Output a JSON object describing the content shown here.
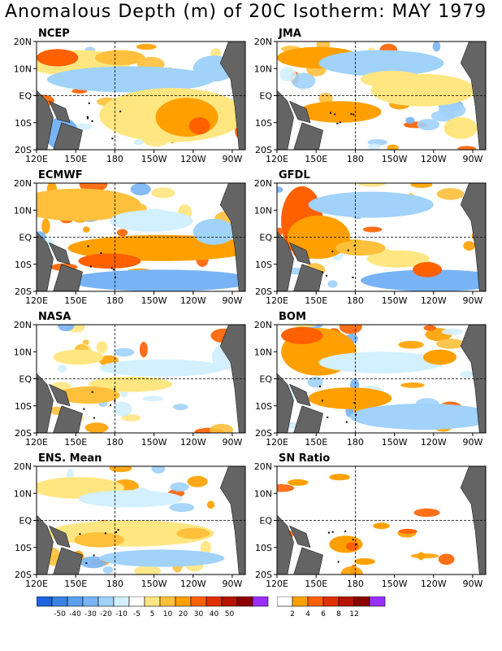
{
  "title": "Anomalous Depth (m) of 20C Isotherm: MAY 1979",
  "lat_labels": [
    "20N",
    "10N",
    "EQ",
    "10S",
    "20S"
  ],
  "lon_labels": [
    "120E",
    "150E",
    "180",
    "150W",
    "120W",
    "90W"
  ],
  "panels": [
    {
      "id": "ncep",
      "name": "NCEP"
    },
    {
      "id": "jma",
      "name": "JMA"
    },
    {
      "id": "ecmwf",
      "name": "ECMWF"
    },
    {
      "id": "gfdl",
      "name": "GFDL"
    },
    {
      "id": "nasa",
      "name": "NASA"
    },
    {
      "id": "bom",
      "name": "BOM"
    },
    {
      "id": "ens",
      "name": "ENS. Mean"
    },
    {
      "id": "sn",
      "name": "SN Ratio"
    }
  ],
  "colorbar_anomaly": {
    "labels": [
      "-50",
      "-40",
      "-30",
      "-20",
      "-10",
      "-5",
      "5",
      "10",
      "20",
      "30",
      "40",
      "50"
    ],
    "colors": [
      "#1e64dc",
      "#3c82e6",
      "#5aa0f0",
      "#78b4f5",
      "#a0d2fa",
      "#d2f0ff",
      "#ffffff",
      "#ffe680",
      "#ffc03c",
      "#ffa000",
      "#ff6000",
      "#e03000",
      "#b41400",
      "#8c0000",
      "#9b30ff"
    ]
  },
  "colorbar_sn": {
    "labels": [
      "2",
      "4",
      "6",
      "8",
      "12"
    ],
    "colors": [
      "#ffffff",
      "#ffa000",
      "#ff6000",
      "#e03000",
      "#b41400",
      "#8c0000",
      "#9b30ff"
    ]
  },
  "land_color": "#646464",
  "chart_data": {
    "type": "heatmap",
    "title": "Anomalous Depth (m) of 20C Isotherm: MAY 1979",
    "region": {
      "lon_range": [
        "120E",
        "80W"
      ],
      "lat_range": [
        "20S",
        "20N"
      ]
    },
    "panels": [
      "NCEP",
      "JMA",
      "ECMWF",
      "GFDL",
      "NASA",
      "BOM",
      "ENS. Mean",
      "SN Ratio"
    ],
    "anomaly_levels_m": [
      -50,
      -40,
      -30,
      -20,
      -10,
      -5,
      5,
      10,
      20,
      30,
      40,
      50
    ],
    "sn_ratio_levels": [
      2,
      4,
      6,
      8,
      12
    ],
    "grid_dashed_at": [
      "180",
      "EQ"
    ]
  }
}
